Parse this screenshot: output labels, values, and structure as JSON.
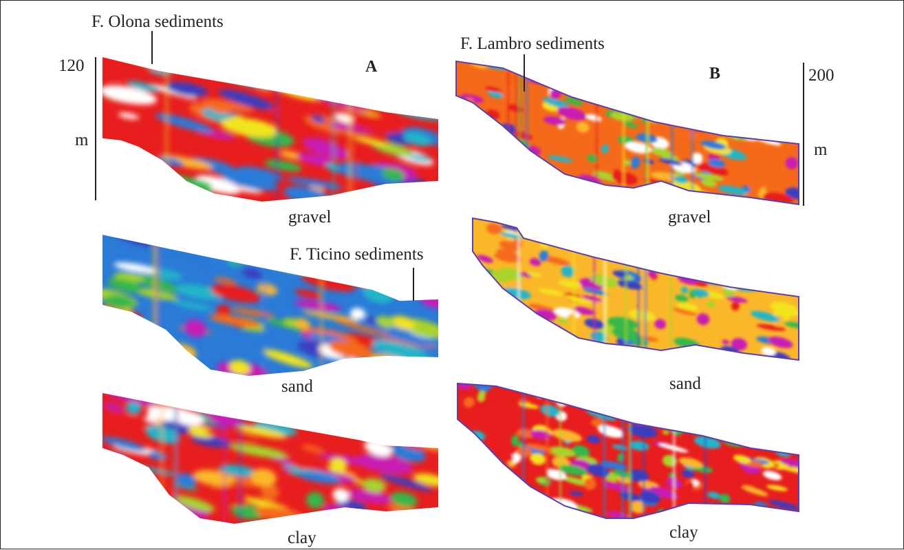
{
  "colors": {
    "palette": [
      "#e81e1e",
      "#f56a1a",
      "#fbb72a",
      "#f2e41e",
      "#a8d42a",
      "#36b84a",
      "#22b5c8",
      "#2a7bd8",
      "#3a3ec0",
      "#c81eb4",
      "#ffffff"
    ],
    "frame": "#222222",
    "outline": "#5a3fb0"
  },
  "panel_a": {
    "letter": "A",
    "scale_top": "120",
    "scale_unit": "m",
    "annotation_top": "F. Olona sediments",
    "annotation_mid": "F. Ticino sediments",
    "labels": [
      "gravel",
      "sand",
      "clay"
    ]
  },
  "panel_b": {
    "letter": "B",
    "scale_top": "200",
    "scale_unit": "m",
    "annotation_top": "F. Lambro sediments",
    "labels": [
      "gravel",
      "sand",
      "clay"
    ]
  }
}
